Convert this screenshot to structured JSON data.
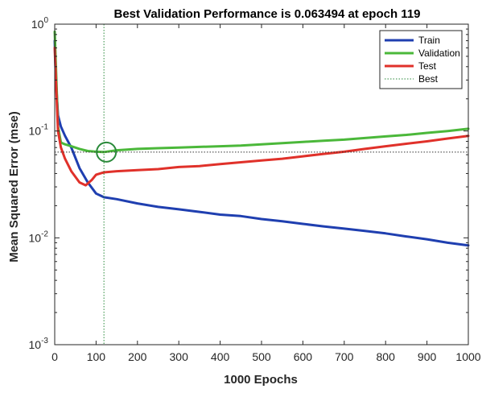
{
  "chart_data": {
    "type": "line",
    "title": "Best Validation Performance is 0.063494 at epoch 119",
    "xlabel": "1000 Epochs",
    "ylabel": "Mean Squared Error  (mse)",
    "xlim": [
      0,
      1000
    ],
    "ylim": [
      0.001,
      1
    ],
    "yscale": "log",
    "x_ticks": [
      0,
      100,
      200,
      300,
      400,
      500,
      600,
      700,
      800,
      900,
      1000
    ],
    "x_tick_labels": [
      "0",
      "100",
      "200",
      "300",
      "400",
      "500",
      "600",
      "700",
      "800",
      "900",
      "1000"
    ],
    "y_ticks": [
      0.001,
      0.01,
      0.1,
      1
    ],
    "y_tick_labels": [
      {
        "base": "10",
        "exp": "-3"
      },
      {
        "base": "10",
        "exp": "-2"
      },
      {
        "base": "10",
        "exp": "-1"
      },
      {
        "base": "10",
        "exp": "0"
      }
    ],
    "grid": false,
    "legend_position": "top-right",
    "best": {
      "epoch": 119,
      "value": 0.063494
    },
    "series": [
      {
        "name": "Train",
        "color": "#1f3fb0",
        "style": "solid",
        "x": [
          0,
          3,
          8,
          15,
          25,
          40,
          60,
          80,
          100,
          119,
          150,
          200,
          250,
          300,
          350,
          400,
          450,
          500,
          550,
          600,
          650,
          700,
          750,
          800,
          850,
          900,
          950,
          1000
        ],
        "y": [
          0.7,
          0.3,
          0.14,
          0.11,
          0.09,
          0.07,
          0.045,
          0.033,
          0.026,
          0.024,
          0.023,
          0.021,
          0.0195,
          0.0185,
          0.0175,
          0.0165,
          0.016,
          0.015,
          0.0143,
          0.0135,
          0.0128,
          0.0122,
          0.0116,
          0.011,
          0.0103,
          0.0097,
          0.009,
          0.0085
        ]
      },
      {
        "name": "Validation",
        "color": "#4bb83a",
        "style": "solid",
        "x": [
          0,
          3,
          8,
          15,
          25,
          40,
          60,
          80,
          100,
          119,
          150,
          200,
          250,
          300,
          350,
          400,
          450,
          500,
          550,
          600,
          650,
          700,
          750,
          800,
          850,
          900,
          950,
          1000
        ],
        "y": [
          0.85,
          0.4,
          0.11,
          0.078,
          0.075,
          0.072,
          0.068,
          0.065,
          0.064,
          0.063494,
          0.066,
          0.068,
          0.069,
          0.07,
          0.071,
          0.072,
          0.073,
          0.075,
          0.077,
          0.079,
          0.081,
          0.083,
          0.086,
          0.089,
          0.092,
          0.096,
          0.1,
          0.105
        ]
      },
      {
        "name": "Test",
        "color": "#e0312a",
        "style": "solid",
        "x": [
          0,
          3,
          8,
          15,
          25,
          40,
          60,
          75,
          90,
          100,
          119,
          150,
          200,
          250,
          300,
          350,
          400,
          450,
          500,
          550,
          600,
          650,
          700,
          750,
          800,
          850,
          900,
          950,
          1000
        ],
        "y": [
          0.6,
          0.3,
          0.1,
          0.07,
          0.055,
          0.042,
          0.033,
          0.031,
          0.035,
          0.039,
          0.041,
          0.042,
          0.043,
          0.044,
          0.046,
          0.047,
          0.049,
          0.051,
          0.053,
          0.055,
          0.058,
          0.061,
          0.064,
          0.068,
          0.072,
          0.076,
          0.08,
          0.085,
          0.09
        ]
      },
      {
        "name": "Best",
        "color": "#2a8a3a",
        "style": "dotted"
      }
    ]
  }
}
